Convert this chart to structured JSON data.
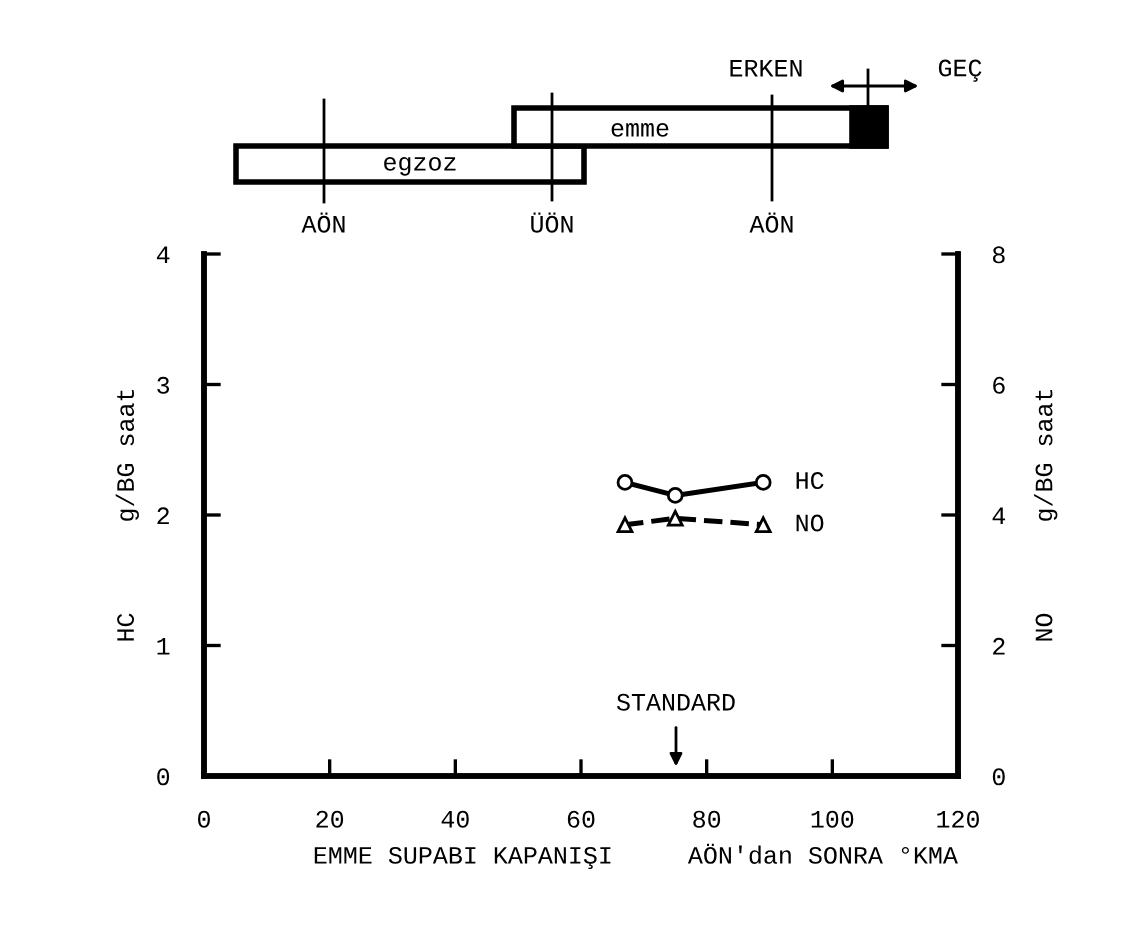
{
  "chart_data": {
    "type": "line",
    "xlabel": "EMME SUPABI KAPANIŞI     AÖN'dan SONRA °KMA",
    "ylabel": "HC      g/BG saat",
    "y2label": "NO      g/BG saat",
    "series": [
      {
        "name": "HC",
        "color": "#000000",
        "x": [
          67,
          75,
          89
        ],
        "values": [
          2.25,
          2.15,
          2.25
        ],
        "marker": "circle",
        "line_style": "solid"
      },
      {
        "name": "NO",
        "color": "#000000",
        "x": [
          67,
          75,
          89
        ],
        "values": [
          3.85,
          3.95,
          3.85
        ],
        "marker": "triangle",
        "line_style": "dashed",
        "axis": "y2"
      }
    ],
    "xlim": [
      0,
      120
    ],
    "xticks": [
      0,
      20,
      40,
      60,
      80,
      100,
      120
    ],
    "ylim": [
      0,
      4
    ],
    "yticks": [
      0,
      1,
      2,
      3,
      4
    ],
    "y2lim": [
      0,
      8
    ],
    "y2ticks": [
      0,
      2,
      4,
      6,
      8
    ],
    "grid": false,
    "legend": false,
    "annotations": [
      "STANDARD",
      "ERKEN",
      "GEÇ",
      "egzoz",
      "emme",
      "AÖN",
      "ÜÖN",
      "AÖN"
    ]
  }
}
